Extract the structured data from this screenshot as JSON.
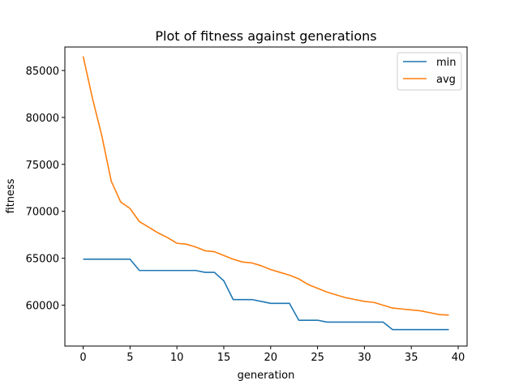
{
  "chart_data": {
    "type": "line",
    "title": "Plot of fitness against generations",
    "xlabel": "generation",
    "ylabel": "fitness",
    "xlim": [
      -1.95,
      40.95
    ],
    "ylim": [
      55650,
      87500
    ],
    "xticks": [
      0,
      5,
      10,
      15,
      20,
      25,
      30,
      35,
      40
    ],
    "yticks": [
      60000,
      65000,
      70000,
      75000,
      80000,
      85000
    ],
    "legend_position": "top-right",
    "x": [
      0,
      1,
      2,
      3,
      4,
      5,
      6,
      7,
      8,
      9,
      10,
      11,
      12,
      13,
      14,
      15,
      16,
      17,
      18,
      19,
      20,
      21,
      22,
      23,
      24,
      25,
      26,
      27,
      28,
      29,
      30,
      31,
      32,
      33,
      34,
      35,
      36,
      37,
      38,
      39
    ],
    "series": [
      {
        "name": "min",
        "color": "#1f77b4",
        "values": [
          64900,
          64900,
          64900,
          64900,
          64900,
          64900,
          63700,
          63700,
          63700,
          63700,
          63700,
          63700,
          63700,
          63500,
          63500,
          62600,
          60600,
          60600,
          60600,
          60400,
          60200,
          60200,
          60200,
          58400,
          58400,
          58400,
          58200,
          58200,
          58200,
          58200,
          58200,
          58200,
          58200,
          57400,
          57400,
          57400,
          57400,
          57400,
          57400,
          57400
        ]
      },
      {
        "name": "avg",
        "color": "#ff7f0e",
        "values": [
          86500,
          82000,
          78000,
          73200,
          71000,
          70300,
          68900,
          68300,
          67700,
          67200,
          66600,
          66500,
          66200,
          65800,
          65700,
          65300,
          64900,
          64600,
          64500,
          64200,
          63800,
          63500,
          63200,
          62800,
          62200,
          61800,
          61400,
          61100,
          60800,
          60600,
          60400,
          60300,
          60000,
          59700,
          59600,
          59500,
          59400,
          59200,
          59000,
          58950
        ]
      }
    ]
  }
}
